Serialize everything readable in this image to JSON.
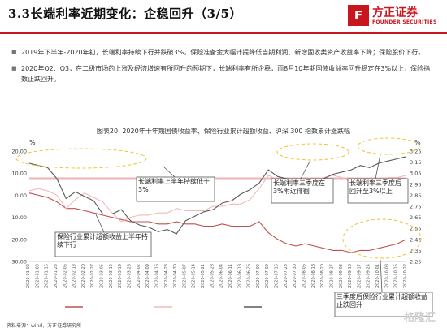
{
  "header": {
    "title": "3.3长端利率近期变化：企稳回升（3/5）",
    "logo_cn": "方正证券",
    "logo_en": "FOUNDER SECURITIES",
    "brand_color": "#c8161e"
  },
  "bullets": [
    "2019年下半年-2020年初，长端利率持续下行并跌破3%，保险准备金大幅计提降低当期利润、新增固收类资产收益率下降；保险股价下行。",
    "2020年Q2、Q3，在二级市场的上涨及经济增速有所回升的预期下，长端利率有所企稳，而8月10年期国债收益率回升稳定在3%以上，保险指数止跌回升。"
  ],
  "chart_data": {
    "type": "line",
    "title": "图表20:  2020年十年期国债收益率、保险行业累计超额收益、沪深 300 指数累计涨跌幅",
    "left_unit": "%",
    "right_unit": "%",
    "ylim_left": [
      -30,
      20
    ],
    "ylim_right": [
      2.25,
      3.25
    ],
    "yticks_left": [
      "20.00",
      "10.00",
      "0.00",
      "-10.00",
      "-20.00",
      "-30.00"
    ],
    "yticks_right": [
      "3.25",
      "3.15",
      "3.05",
      "2.95",
      "2.85",
      "2.75",
      "2.65",
      "2.55",
      "2.45",
      "2.35",
      "2.25"
    ],
    "grid": false,
    "legend_position": "bottom",
    "x": [
      "2020-01-02",
      "2020-01-09",
      "2020-01-16",
      "2020-01-23",
      "2020-02-06",
      "2020-02-13",
      "2020-02-20",
      "2020-02-27",
      "2020-03-05",
      "2020-03-12",
      "2020-03-19",
      "2020-03-26",
      "2020-04-02",
      "2020-04-09",
      "2020-04-16",
      "2020-04-23",
      "2020-04-30",
      "2020-05-07",
      "2020-05-14",
      "2020-05-21",
      "2020-05-28",
      "2020-06-04",
      "2020-06-11",
      "2020-06-18",
      "2020-06-25",
      "2020-07-02",
      "2020-07-09",
      "2020-07-16",
      "2020-07-23",
      "2020-07-30",
      "2020-08-06",
      "2020-08-13",
      "2020-08-20",
      "2020-08-27",
      "2020-09-03",
      "2020-09-10",
      "2020-09-17",
      "2020-09-24",
      "2020-10-01",
      "2020-10-08",
      "2020-10-15",
      "2020-10-22"
    ],
    "series": [
      {
        "name": "",
        "axis": "left",
        "color": "#c0504d",
        "values": [
          1,
          0,
          -1,
          -3,
          -6,
          -6,
          -7,
          -8,
          -9,
          -10,
          -11,
          -12,
          -12,
          -12,
          -13,
          -13,
          -12,
          -13,
          -13,
          -14,
          -14,
          -13,
          -14,
          -14,
          -14,
          -12,
          -17,
          -20,
          -22,
          -23,
          -22,
          -23,
          -24,
          -25,
          -25,
          -26,
          -25,
          -25,
          -24,
          -23,
          -22,
          -20
        ]
      },
      {
        "name": "",
        "axis": "left",
        "color": "#f2b8ba",
        "values": [
          2,
          3,
          2,
          0,
          -6,
          -2,
          1,
          -1,
          -3,
          -8,
          -12,
          -10,
          -9,
          -9,
          -8,
          -8,
          -6,
          -7,
          -7,
          -7,
          -5,
          -5,
          -4,
          -4,
          -2,
          3,
          9,
          7,
          5,
          6,
          8,
          7,
          8,
          9,
          8,
          6,
          5,
          6,
          7,
          8,
          8,
          9
        ]
      },
      {
        "name": "",
        "axis": "right",
        "color": "#595959",
        "values": [
          3.14,
          3.12,
          3.1,
          3.0,
          2.82,
          2.88,
          2.84,
          2.8,
          2.68,
          2.68,
          2.72,
          2.62,
          2.58,
          2.56,
          2.52,
          2.54,
          2.5,
          2.62,
          2.66,
          2.7,
          2.72,
          2.78,
          2.8,
          2.86,
          2.9,
          2.96,
          3.08,
          3.02,
          3.0,
          2.98,
          2.98,
          2.96,
          3.0,
          3.04,
          3.06,
          3.08,
          3.12,
          3.1,
          3.14,
          3.16,
          3.18,
          3.2
        ]
      }
    ],
    "reference_line": {
      "axis": "right",
      "value": 3.0,
      "color": "#e89a9c"
    },
    "annotations": [
      "长端利率上半年持续低于3%",
      "长端利率三季度在3%附近徘徊",
      "长端利率三季度后回升至3%以上",
      "保险行业累计超额收益上半年持续下行",
      "三季度后保险行业累计超额收益止跌回升"
    ]
  },
  "footer": {
    "source": "资料来源：wind，方正证券研究所",
    "watermark": "格隆汇"
  }
}
